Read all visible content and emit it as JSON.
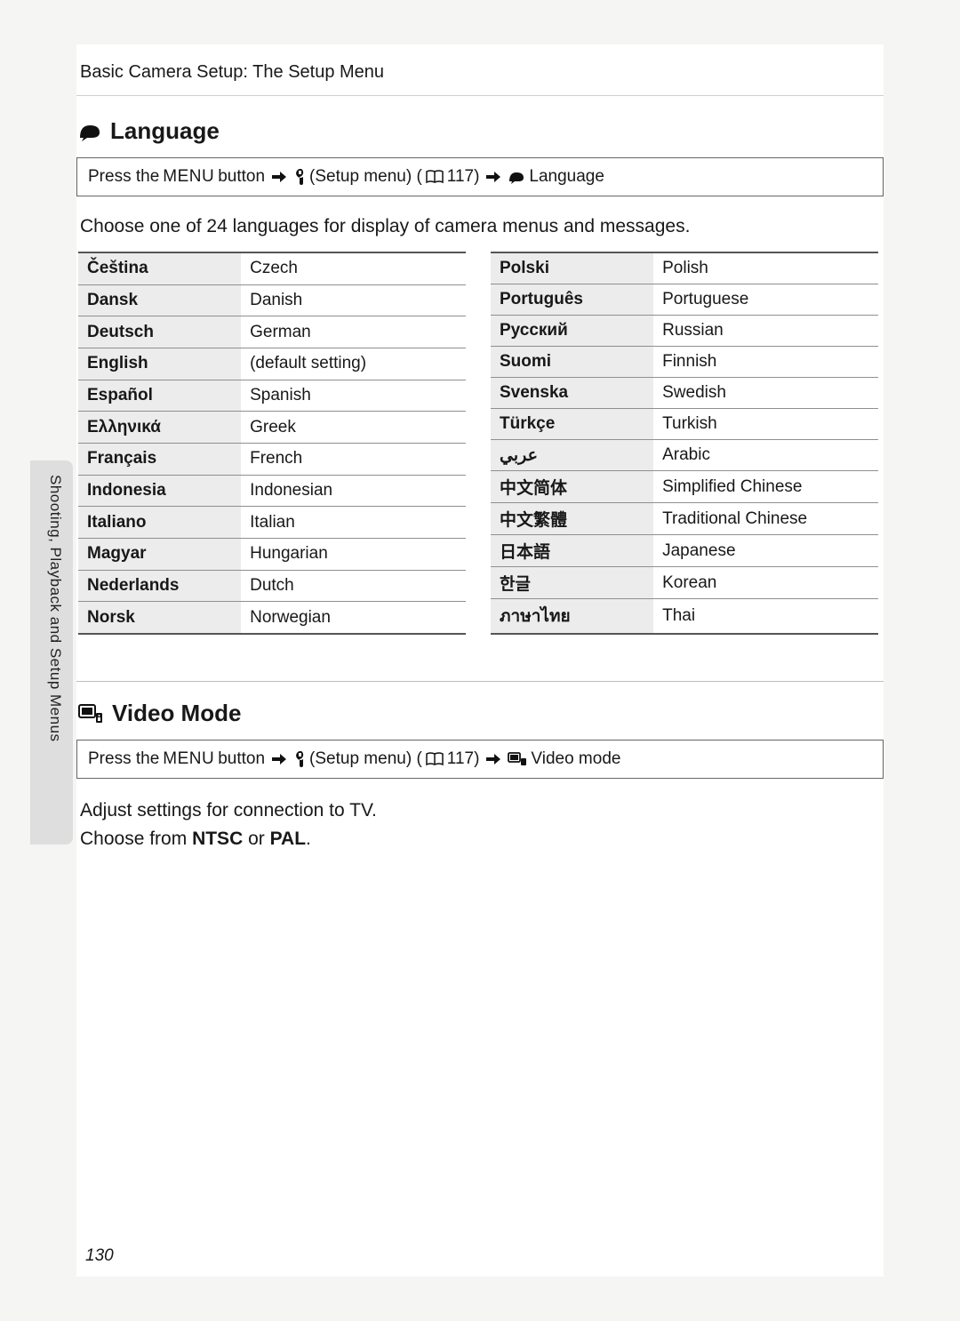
{
  "header": "Basic Camera Setup: The Setup Menu",
  "side_tab_text": "Shooting, Playback and Setup Menus",
  "page_number": "130",
  "section_language": {
    "title": "Language",
    "nav_prefix": "Press the",
    "nav_menu_word": "MENU",
    "nav_button_word": "button",
    "nav_setup_label": "(Setup menu) (",
    "nav_page_ref": "117)",
    "nav_end": "Language",
    "intro": "Choose one of 24 languages for display of camera menus and messages.",
    "left": [
      {
        "native": "Čeština",
        "eng": "Czech"
      },
      {
        "native": "Dansk",
        "eng": "Danish"
      },
      {
        "native": "Deutsch",
        "eng": "German"
      },
      {
        "native": "English",
        "eng": "(default setting)"
      },
      {
        "native": "Español",
        "eng": "Spanish"
      },
      {
        "native": "Ελληνικά",
        "eng": "Greek"
      },
      {
        "native": "Français",
        "eng": "French"
      },
      {
        "native": "Indonesia",
        "eng": "Indonesian"
      },
      {
        "native": "Italiano",
        "eng": "Italian"
      },
      {
        "native": "Magyar",
        "eng": "Hungarian"
      },
      {
        "native": "Nederlands",
        "eng": "Dutch"
      },
      {
        "native": "Norsk",
        "eng": "Norwegian"
      }
    ],
    "right": [
      {
        "native": "Polski",
        "eng": "Polish"
      },
      {
        "native": "Português",
        "eng": "Portuguese"
      },
      {
        "native": "Русский",
        "eng": "Russian"
      },
      {
        "native": "Suomi",
        "eng": "Finnish"
      },
      {
        "native": "Svenska",
        "eng": "Swedish"
      },
      {
        "native": "Türkçe",
        "eng": "Turkish"
      },
      {
        "native": "عربي",
        "eng": "Arabic"
      },
      {
        "native": "中文简体",
        "eng": "Simplified Chinese"
      },
      {
        "native": "中文繁體",
        "eng": "Traditional Chinese"
      },
      {
        "native": "日本語",
        "eng": "Japanese"
      },
      {
        "native": "한글",
        "eng": "Korean"
      },
      {
        "native": "ภาษาไทย",
        "eng": "Thai"
      }
    ]
  },
  "section_video": {
    "title": "Video Mode",
    "nav_prefix": "Press the",
    "nav_menu_word": "MENU",
    "nav_button_word": "button",
    "nav_setup_label": "(Setup menu) (",
    "nav_page_ref": "117)",
    "nav_end": "Video mode",
    "line1": "Adjust settings for connection to TV.",
    "line2a": "Choose from ",
    "line2b": "NTSC",
    "line2c": " or ",
    "line2d": "PAL",
    "line2e": "."
  },
  "colors": {
    "text": "#181818",
    "row_alt": "#ececec",
    "rule": "#8f8f8f",
    "side_tab": "#dedede"
  }
}
